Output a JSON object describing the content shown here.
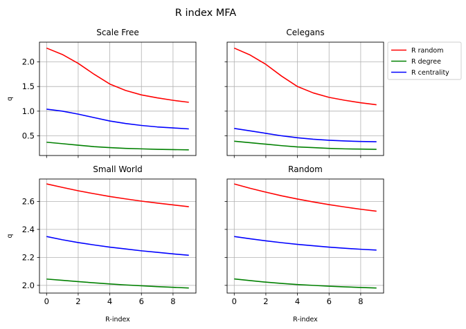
{
  "figure": {
    "title": "R index MFA"
  },
  "legend": {
    "placement": "right of top-right panel",
    "entries": [
      {
        "label": "R random",
        "color": "#ff0000"
      },
      {
        "label": "R degree",
        "color": "#008000"
      },
      {
        "label": "R centrality",
        "color": "#0000ff"
      }
    ]
  },
  "chart_data": [
    {
      "type": "line",
      "title": "Scale Free",
      "xlabel": "",
      "ylabel": "q",
      "xlim": [
        -0.45,
        9.45
      ],
      "ylim": [
        0.1,
        2.4
      ],
      "xticks": [
        0,
        2,
        4,
        6,
        8
      ],
      "yticks": [
        0.5,
        1.0,
        1.5,
        2.0
      ],
      "xtick_labels": [],
      "ytick_labels": [
        "0.5",
        "1.0",
        "1.5",
        "2.0"
      ],
      "grid": true,
      "x": [
        0,
        1,
        2,
        3,
        4,
        5,
        6,
        7,
        8,
        9
      ],
      "series": [
        {
          "name": "R random",
          "color": "#ff0000",
          "values": [
            2.28,
            2.15,
            1.97,
            1.75,
            1.55,
            1.42,
            1.33,
            1.27,
            1.22,
            1.18
          ]
        },
        {
          "name": "R degree",
          "color": "#008000",
          "values": [
            0.37,
            0.34,
            0.31,
            0.28,
            0.26,
            0.245,
            0.235,
            0.225,
            0.22,
            0.215
          ]
        },
        {
          "name": "R centrality",
          "color": "#0000ff",
          "values": [
            1.04,
            1.0,
            0.94,
            0.87,
            0.8,
            0.75,
            0.71,
            0.68,
            0.66,
            0.64
          ]
        }
      ]
    },
    {
      "type": "line",
      "title": "Celegans",
      "xlabel": "",
      "ylabel": "",
      "xlim": [
        -0.45,
        9.45
      ],
      "ylim": [
        0.1,
        2.4
      ],
      "xticks": [
        0,
        2,
        4,
        6,
        8
      ],
      "yticks": [
        0.5,
        1.0,
        1.5,
        2.0
      ],
      "xtick_labels": [],
      "ytick_labels": [],
      "grid": true,
      "x": [
        0,
        1,
        2,
        3,
        4,
        5,
        6,
        7,
        8,
        9
      ],
      "series": [
        {
          "name": "R random",
          "color": "#ff0000",
          "values": [
            2.28,
            2.14,
            1.95,
            1.71,
            1.5,
            1.37,
            1.28,
            1.22,
            1.17,
            1.13
          ]
        },
        {
          "name": "R degree",
          "color": "#008000",
          "values": [
            0.39,
            0.36,
            0.33,
            0.3,
            0.275,
            0.26,
            0.245,
            0.235,
            0.23,
            0.225
          ]
        },
        {
          "name": "R centrality",
          "color": "#0000ff",
          "values": [
            0.65,
            0.6,
            0.55,
            0.5,
            0.46,
            0.43,
            0.41,
            0.395,
            0.385,
            0.38
          ]
        }
      ]
    },
    {
      "type": "line",
      "title": "Small World",
      "xlabel": "R-index",
      "ylabel": "q",
      "xlim": [
        -0.45,
        9.45
      ],
      "ylim": [
        1.945,
        2.76
      ],
      "xticks": [
        0,
        2,
        4,
        6,
        8
      ],
      "yticks": [
        2.0,
        2.2,
        2.4,
        2.6
      ],
      "xtick_labels": [
        "0",
        "2",
        "4",
        "6",
        "8"
      ],
      "ytick_labels": [
        "2.0",
        "2.2",
        "2.4",
        "2.6"
      ],
      "grid": true,
      "x": [
        0,
        1,
        2,
        3,
        4,
        5,
        6,
        7,
        8,
        9
      ],
      "series": [
        {
          "name": "R random",
          "color": "#ff0000",
          "values": [
            2.725,
            2.7,
            2.676,
            2.655,
            2.635,
            2.618,
            2.602,
            2.588,
            2.575,
            2.562
          ]
        },
        {
          "name": "R degree",
          "color": "#008000",
          "values": [
            2.045,
            2.036,
            2.027,
            2.018,
            2.01,
            2.003,
            1.997,
            1.991,
            1.986,
            1.981
          ]
        },
        {
          "name": "R centrality",
          "color": "#0000ff",
          "values": [
            2.349,
            2.326,
            2.306,
            2.289,
            2.273,
            2.26,
            2.247,
            2.236,
            2.225,
            2.215
          ]
        }
      ]
    },
    {
      "type": "line",
      "title": "Random",
      "xlabel": "R-index",
      "ylabel": "",
      "xlim": [
        -0.45,
        9.45
      ],
      "ylim": [
        1.945,
        2.76
      ],
      "xticks": [
        0,
        2,
        4,
        6,
        8
      ],
      "yticks": [
        2.0,
        2.2,
        2.4,
        2.6
      ],
      "xtick_labels": [
        "0",
        "2",
        "4",
        "6",
        "8"
      ],
      "ytick_labels": [],
      "grid": true,
      "x": [
        0,
        1,
        2,
        3,
        4,
        5,
        6,
        7,
        8,
        9
      ],
      "series": [
        {
          "name": "R random",
          "color": "#ff0000",
          "values": [
            2.725,
            2.694,
            2.666,
            2.64,
            2.617,
            2.596,
            2.577,
            2.56,
            2.544,
            2.53
          ]
        },
        {
          "name": "R degree",
          "color": "#008000",
          "values": [
            2.046,
            2.034,
            2.023,
            2.014,
            2.006,
            2.0,
            1.994,
            1.989,
            1.985,
            1.981
          ]
        },
        {
          "name": "R centrality",
          "color": "#0000ff",
          "values": [
            2.349,
            2.333,
            2.318,
            2.305,
            2.293,
            2.283,
            2.273,
            2.265,
            2.258,
            2.252
          ]
        }
      ]
    }
  ]
}
